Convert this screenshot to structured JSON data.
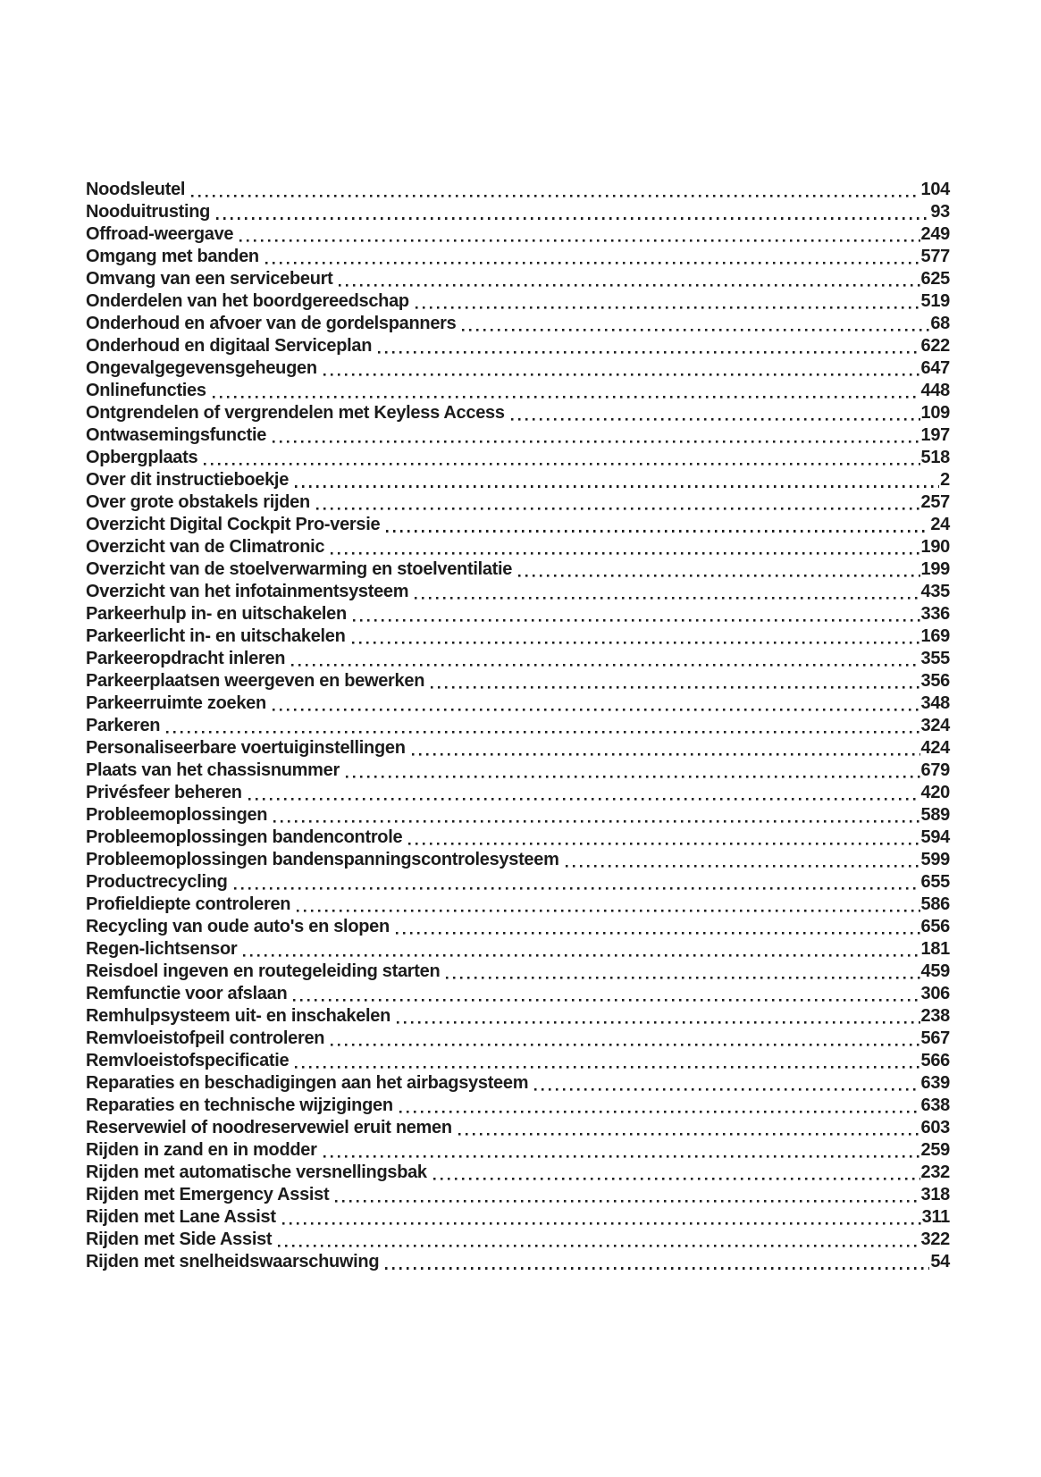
{
  "page": {
    "background_color": "#ffffff",
    "text_color": "#1c1c1c",
    "kind": "index-table-of-contents"
  },
  "toc": {
    "entries": [
      {
        "label": "Noodsleutel",
        "page": "104"
      },
      {
        "label": "Nooduitrusting",
        "page": "93"
      },
      {
        "label": "Offroad-weergave",
        "page": "249"
      },
      {
        "label": "Omgang met banden",
        "page": "577"
      },
      {
        "label": "Omvang van een servicebeurt",
        "page": "625"
      },
      {
        "label": "Onderdelen van het boordgereedschap",
        "page": "519"
      },
      {
        "label": "Onderhoud en afvoer van de gordelspanners",
        "page": "68"
      },
      {
        "label": "Onderhoud en digitaal Serviceplan",
        "page": "622"
      },
      {
        "label": "Ongevalgegevensgeheugen",
        "page": "647"
      },
      {
        "label": "Onlinefuncties",
        "page": "448"
      },
      {
        "label": "Ontgrendelen of vergrendelen met Keyless Access",
        "page": "109"
      },
      {
        "label": "Ontwasemingsfunctie",
        "page": "197"
      },
      {
        "label": "Opbergplaats",
        "page": "518"
      },
      {
        "label": "Over dit instructieboekje",
        "page": "2"
      },
      {
        "label": "Over grote obstakels rijden",
        "page": "257"
      },
      {
        "label": "Overzicht Digital Cockpit Pro-versie",
        "page": "24"
      },
      {
        "label": "Overzicht van de Climatronic",
        "page": "190"
      },
      {
        "label": "Overzicht van de stoelverwarming en stoelventilatie",
        "page": "199"
      },
      {
        "label": "Overzicht van het infotainmentsysteem",
        "page": "435"
      },
      {
        "label": "Parkeerhulp in- en uitschakelen",
        "page": "336"
      },
      {
        "label": "Parkeerlicht in- en uitschakelen",
        "page": "169"
      },
      {
        "label": "Parkeeropdracht inleren",
        "page": "355"
      },
      {
        "label": "Parkeerplaatsen weergeven en bewerken",
        "page": "356"
      },
      {
        "label": "Parkeerruimte zoeken",
        "page": "348"
      },
      {
        "label": "Parkeren",
        "page": "324"
      },
      {
        "label": "Personaliseerbare voertuiginstellingen",
        "page": "424"
      },
      {
        "label": "Plaats van het chassisnummer",
        "page": "679"
      },
      {
        "label": "Privésfeer beheren",
        "page": "420"
      },
      {
        "label": "Probleemoplossingen",
        "page": "589"
      },
      {
        "label": "Probleemoplossingen bandencontrole",
        "page": "594"
      },
      {
        "label": "Probleemoplossingen bandenspanningscontrolesysteem",
        "page": "599"
      },
      {
        "label": "Productrecycling",
        "page": "655"
      },
      {
        "label": "Profieldiepte controleren",
        "page": "586"
      },
      {
        "label": "Recycling van oude auto's en slopen",
        "page": "656"
      },
      {
        "label": "Regen-lichtsensor",
        "page": "181"
      },
      {
        "label": "Reisdoel ingeven en routegeleiding starten",
        "page": "459"
      },
      {
        "label": "Remfunctie voor afslaan",
        "page": "306"
      },
      {
        "label": "Remhulpsysteem uit- en inschakelen",
        "page": "238"
      },
      {
        "label": "Remvloeistofpeil controleren",
        "page": "567"
      },
      {
        "label": "Remvloeistofspecificatie",
        "page": "566"
      },
      {
        "label": "Reparaties en beschadigingen aan het airbagsysteem",
        "page": "639"
      },
      {
        "label": "Reparaties en technische wijzigingen",
        "page": "638"
      },
      {
        "label": "Reservewiel of noodreservewiel eruit nemen",
        "page": "603"
      },
      {
        "label": "Rijden in zand en in modder",
        "page": "259"
      },
      {
        "label": "Rijden met automatische versnellingsbak",
        "page": "232"
      },
      {
        "label": "Rijden met Emergency Assist",
        "page": "318"
      },
      {
        "label": "Rijden met Lane Assist",
        "page": "311"
      },
      {
        "label": "Rijden met Side Assist",
        "page": "322"
      },
      {
        "label": "Rijden met snelheidswaarschuwing",
        "page": "54"
      }
    ]
  }
}
